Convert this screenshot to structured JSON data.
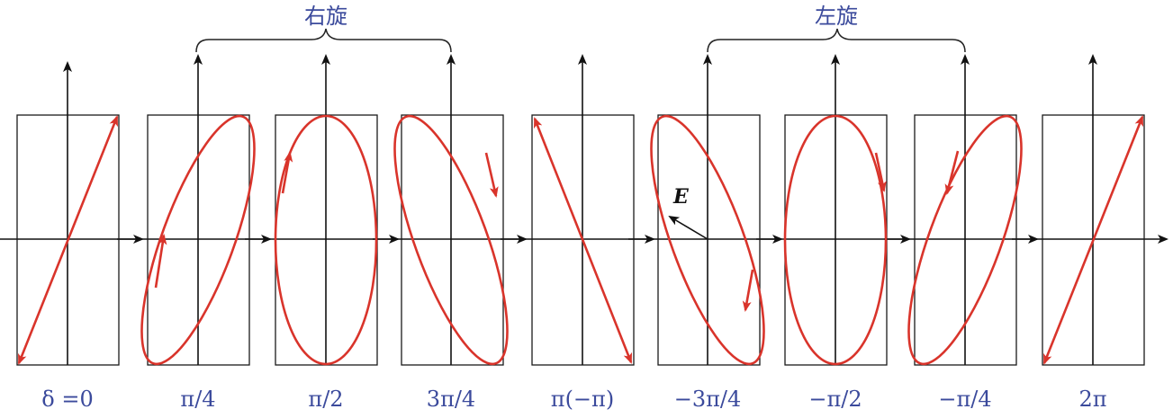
{
  "group_labels": {
    "right": "右旋",
    "left": "左旋"
  },
  "vector_label": "E",
  "colors": {
    "curve": "#d9342b",
    "axis": "#111111",
    "label": "#3b4a9c"
  },
  "panels": [
    {
      "label": "δ =0",
      "type": "line",
      "slope": "positive",
      "arrows": "both"
    },
    {
      "label": "π/4",
      "type": "ellipse",
      "tilt": "positive",
      "rotation": "right"
    },
    {
      "label": "π/2",
      "type": "ellipse",
      "tilt": "none",
      "rotation": "right"
    },
    {
      "label": "3π/4",
      "type": "ellipse",
      "tilt": "negative",
      "rotation": "right"
    },
    {
      "label": "π(−π)",
      "type": "line",
      "slope": "negative",
      "arrows": "both"
    },
    {
      "label": "−3π/4",
      "type": "ellipse",
      "tilt": "negative",
      "rotation": "left"
    },
    {
      "label": "−π/2",
      "type": "ellipse",
      "tilt": "none",
      "rotation": "left"
    },
    {
      "label": "−π/4",
      "type": "ellipse",
      "tilt": "positive",
      "rotation": "left"
    },
    {
      "label": "2π",
      "type": "line",
      "slope": "positive",
      "arrows": "both"
    }
  ]
}
